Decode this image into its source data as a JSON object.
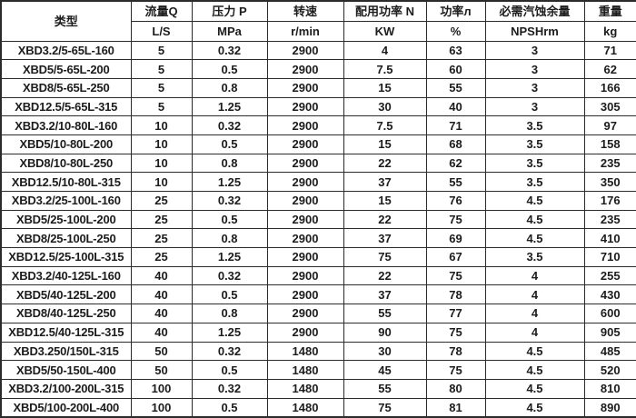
{
  "table": {
    "columns": [
      {
        "key": "type",
        "label": "类型",
        "unit": ""
      },
      {
        "key": "flow",
        "label": "流量Q",
        "unit": "L/S"
      },
      {
        "key": "pressure",
        "label": "压力 P",
        "unit": "MPa"
      },
      {
        "key": "speed",
        "label": "转速",
        "unit": "r/min"
      },
      {
        "key": "power",
        "label": "配用功率 N",
        "unit": "KW"
      },
      {
        "key": "efficiency",
        "label": "功率л",
        "unit": "%"
      },
      {
        "key": "npsh",
        "label": "必需汽蚀余量",
        "unit": "NPSHrm"
      },
      {
        "key": "weight",
        "label": "重量",
        "unit": "kg"
      }
    ],
    "rows": [
      [
        "XBD3.2/5-65L-160",
        "5",
        "0.32",
        "2900",
        "4",
        "63",
        "3",
        "71"
      ],
      [
        "XBD5/5-65L-200",
        "5",
        "0.5",
        "2900",
        "7.5",
        "60",
        "3",
        "62"
      ],
      [
        "XBD8/5-65L-250",
        "5",
        "0.8",
        "2900",
        "15",
        "55",
        "3",
        "166"
      ],
      [
        "XBD12.5/5-65L-315",
        "5",
        "1.25",
        "2900",
        "30",
        "40",
        "3",
        "305"
      ],
      [
        "XBD3.2/10-80L-160",
        "10",
        "0.32",
        "2900",
        "7.5",
        "71",
        "3.5",
        "97"
      ],
      [
        "XBD5/10-80L-200",
        "10",
        "0.5",
        "2900",
        "15",
        "68",
        "3.5",
        "158"
      ],
      [
        "XBD8/10-80L-250",
        "10",
        "0.8",
        "2900",
        "22",
        "62",
        "3.5",
        "235"
      ],
      [
        "XBD12.5/10-80L-315",
        "10",
        "1.25",
        "2900",
        "37",
        "55",
        "3.5",
        "350"
      ],
      [
        "XBD3.2/25-100L-160",
        "25",
        "0.32",
        "2900",
        "15",
        "76",
        "4.5",
        "176"
      ],
      [
        "XBD5/25-100L-200",
        "25",
        "0.5",
        "2900",
        "22",
        "75",
        "4.5",
        "235"
      ],
      [
        "XBD8/25-100L-250",
        "25",
        "0.8",
        "2900",
        "37",
        "69",
        "4.5",
        "410"
      ],
      [
        "XBD12.5/25-100L-315",
        "25",
        "1.25",
        "2900",
        "75",
        "67",
        "3.5",
        "710"
      ],
      [
        "XBD3.2/40-125L-160",
        "40",
        "0.32",
        "2900",
        "22",
        "75",
        "4",
        "255"
      ],
      [
        "XBD5/40-125L-200",
        "40",
        "0.5",
        "2900",
        "37",
        "78",
        "4",
        "430"
      ],
      [
        "XBD8/40-125L-250",
        "40",
        "0.8",
        "2900",
        "55",
        "77",
        "4",
        "600"
      ],
      [
        "XBD12.5/40-125L-315",
        "40",
        "1.25",
        "2900",
        "90",
        "75",
        "4",
        "905"
      ],
      [
        "XBD3.250/150L-315",
        "50",
        "0.32",
        "1480",
        "30",
        "78",
        "4.5",
        "485"
      ],
      [
        "XBD5/50-150L-400",
        "50",
        "0.5",
        "1480",
        "45",
        "75",
        "4.5",
        "520"
      ],
      [
        "XBD3.2/100-200L-315",
        "100",
        "0.32",
        "1480",
        "55",
        "80",
        "4.5",
        "810"
      ],
      [
        "XBD5/100-200L-400",
        "100",
        "0.5",
        "1480",
        "75",
        "81",
        "4.5",
        "890"
      ]
    ]
  }
}
